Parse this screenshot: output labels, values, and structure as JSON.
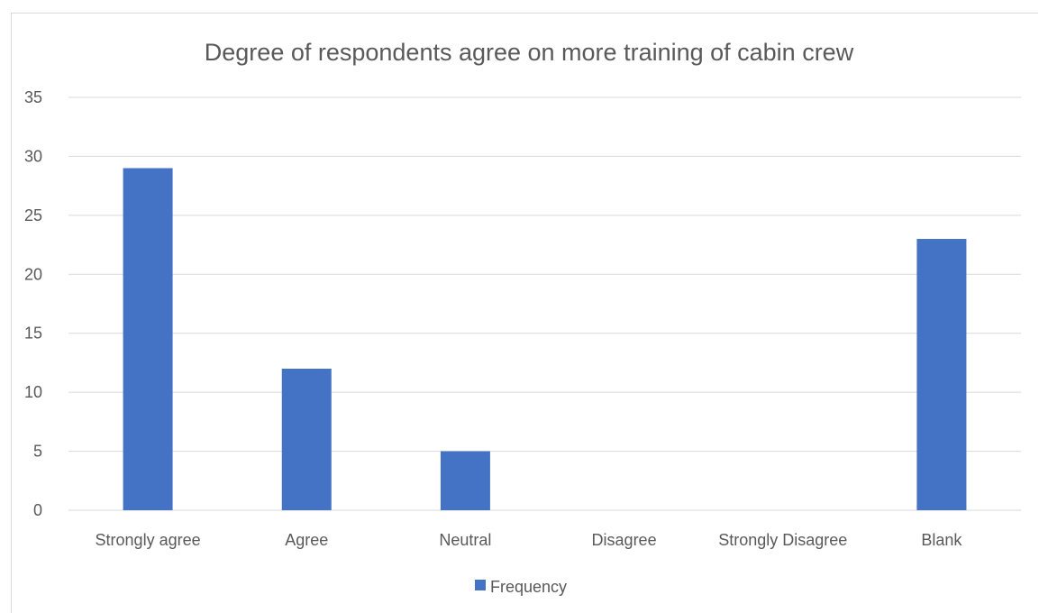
{
  "chart_data": {
    "type": "bar",
    "title": "Degree of respondents agree on more training of cabin crew",
    "xlabel": "",
    "ylabel": "",
    "categories": [
      "Strongly agree",
      "Agree",
      "Neutral",
      "Disagree",
      "Strongly Disagree",
      "Blank"
    ],
    "series": [
      {
        "name": "Frequency",
        "values": [
          29,
          12,
          5,
          0,
          0,
          23
        ]
      }
    ],
    "ylim": [
      0,
      35
    ],
    "yticks": [
      0,
      5,
      10,
      15,
      20,
      25,
      30,
      35
    ],
    "grid": true,
    "legend": "bottom",
    "colors": {
      "bar": "#4472C4",
      "grid": "#d9d9d9",
      "text": "#595959"
    }
  }
}
